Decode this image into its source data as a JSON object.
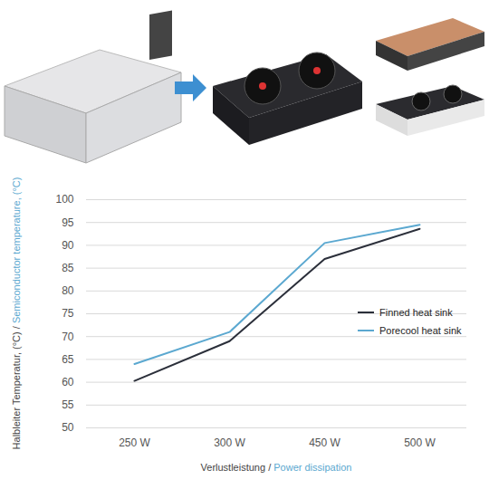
{
  "chart_data": {
    "type": "line",
    "x_label": "Verlustleistung / Power dissipation",
    "y_label": "Halbleiter Temperatur, (°C) / Semiconductor temperature, (°C)",
    "categories": [
      "250 W",
      "300 W",
      "450 W",
      "500 W"
    ],
    "series": [
      {
        "name": "Finned heat sink",
        "color": "#2b2f3a",
        "values": [
          60.3,
          69,
          87,
          93.6
        ]
      },
      {
        "name": "Porecool heat sink",
        "color": "#5ba8d0",
        "values": [
          64,
          71,
          90.5,
          94.5
        ]
      }
    ],
    "ylim": [
      50,
      100
    ],
    "yticks": [
      50,
      55,
      60,
      65,
      70,
      75,
      80,
      85,
      90,
      95,
      100
    ],
    "grid": true,
    "legend": "right"
  }
}
